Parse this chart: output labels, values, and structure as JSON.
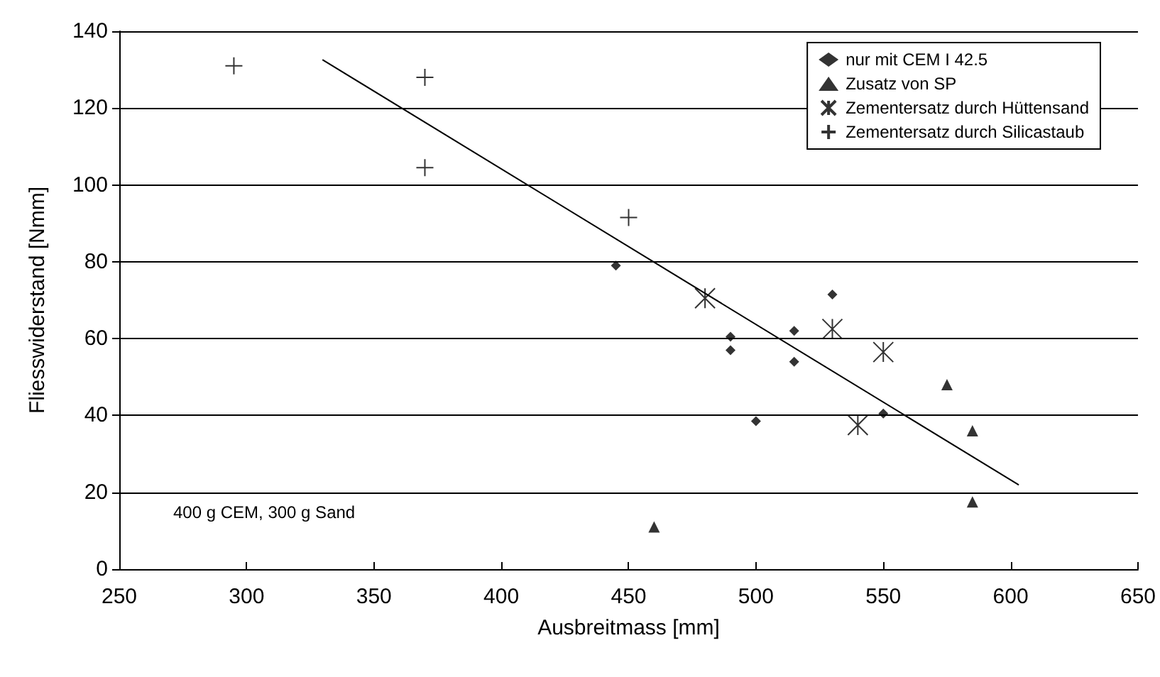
{
  "chart_data": {
    "type": "scatter",
    "xlabel": "Ausbreitmass [mm]",
    "ylabel": "Fliesswiderstand [Nmm]",
    "xlim": [
      250,
      650
    ],
    "xticks": [
      250,
      300,
      350,
      400,
      450,
      500,
      550,
      600,
      650
    ],
    "ylim": [
      0,
      140
    ],
    "yticks": [
      0,
      20,
      40,
      60,
      80,
      100,
      120,
      140
    ],
    "grid": "y",
    "legend": "top right",
    "annotations": [
      "400 g CEM, 300 g Sand"
    ],
    "series": [
      {
        "name": "nur mit CEM I 42.5",
        "color": "#000000",
        "marker": "diamond",
        "x": [
          445,
          490,
          490,
          500,
          515,
          515,
          530,
          550
        ],
        "values": [
          79,
          60.5,
          57,
          38.5,
          62,
          54,
          71.5,
          40.5
        ]
      },
      {
        "name": "Zusatz von SP",
        "color": "#000000",
        "marker": "triangle",
        "x": [
          460,
          575,
          585,
          585
        ],
        "values": [
          11,
          48,
          36,
          17.5
        ]
      },
      {
        "name": "Zementersatz durch Hüttensand",
        "color": "#000000",
        "marker": "cross",
        "x": [
          480,
          530,
          540,
          550
        ],
        "values": [
          70.5,
          62.5,
          37.5,
          56.5
        ]
      },
      {
        "name": "Zementersatz durch Silicastaub",
        "color": "#000000",
        "marker": "cross",
        "x": [
          295,
          370,
          370,
          450
        ],
        "values": [
          131,
          128,
          104.5,
          91.5
        ]
      },
      {
        "type": "line",
        "color": "#000000",
        "marker": "none",
        "line_style": "solid",
        "x": [
          330,
          603
        ],
        "values": [
          132.5,
          22
        ]
      }
    ]
  }
}
